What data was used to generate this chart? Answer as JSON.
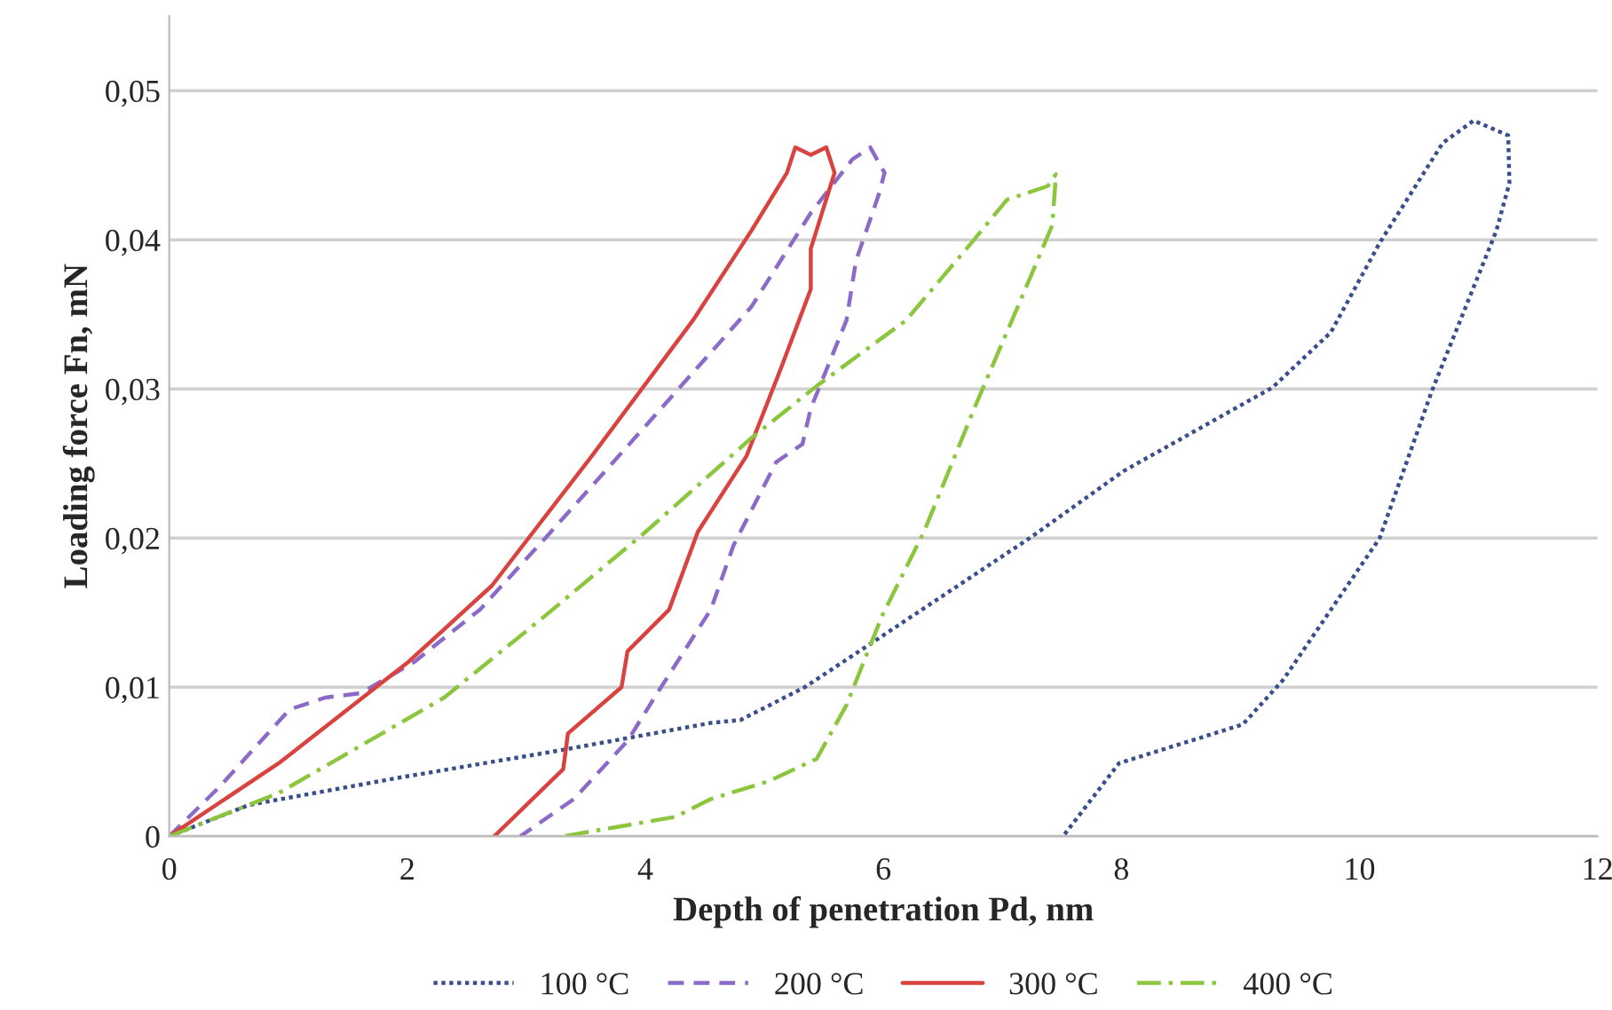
{
  "chart_data": {
    "type": "line",
    "xlabel": "Depth of penetration Pd, nm",
    "ylabel": "Loading force Fn, mN",
    "xlim": [
      0,
      12
    ],
    "xticks": [
      0,
      2,
      4,
      6,
      8,
      10,
      12
    ],
    "ylim": [
      0,
      0.055
    ],
    "yticks": [
      {
        "value": 0,
        "label": "0"
      },
      {
        "value": 0.01,
        "label": "0,01"
      },
      {
        "value": 0.02,
        "label": "0,02"
      },
      {
        "value": 0.03,
        "label": "0,03"
      },
      {
        "value": 0.04,
        "label": "0,04"
      },
      {
        "value": 0.05,
        "label": "0,05"
      }
    ],
    "grid": "y",
    "legend": "bottom",
    "series": [
      {
        "name": "100 °C",
        "color": "#3b4e8c",
        "line_style": "dotted",
        "x": [
          0,
          0.67,
          1.91,
          3.31,
          4.55,
          4.8,
          5.34,
          5.89,
          7.23,
          8.02,
          9.27,
          9.76,
          10.17,
          10.7,
          10.96,
          11.25,
          11.26,
          11.15,
          10.61,
          10.17,
          9.36,
          9.02,
          7.98,
          7.51
        ],
        "values": [
          0,
          0.0021,
          0.0039,
          0.0058,
          0.0076,
          0.0078,
          0.01,
          0.0129,
          0.02,
          0.0245,
          0.0301,
          0.0338,
          0.0398,
          0.0465,
          0.048,
          0.047,
          0.0438,
          0.0406,
          0.0299,
          0.02,
          0.0105,
          0.0075,
          0.0049,
          0
        ]
      },
      {
        "name": "200 °C",
        "color": "#8c6bc8",
        "line_style": "dashed",
        "x": [
          0,
          0.42,
          1.01,
          1.31,
          1.61,
          2.06,
          2.61,
          3.16,
          4.0,
          4.89,
          5.39,
          5.74,
          5.89,
          6.01,
          5.96,
          5.77,
          5.69,
          5.39,
          5.32,
          5.1,
          4.74,
          4.55,
          4.1,
          3.85,
          3.4,
          2.95
        ],
        "values": [
          0,
          0.0033,
          0.0085,
          0.0093,
          0.0096,
          0.0117,
          0.0152,
          0.02,
          0.0275,
          0.0355,
          0.0418,
          0.0454,
          0.0462,
          0.0445,
          0.043,
          0.0386,
          0.0346,
          0.0287,
          0.0263,
          0.0251,
          0.0195,
          0.0152,
          0.0096,
          0.0064,
          0.0025,
          0
        ]
      },
      {
        "name": "300 °C",
        "color": "#d9433f",
        "line_style": "solid",
        "x": [
          0,
          0.92,
          2.01,
          2.71,
          3.55,
          4.4,
          4.89,
          5.19,
          5.26,
          5.39,
          5.52,
          5.59,
          5.39,
          5.39,
          5.14,
          4.85,
          4.44,
          4.2,
          3.85,
          3.8,
          3.35,
          3.31,
          2.73
        ],
        "values": [
          0,
          0.0049,
          0.0117,
          0.0168,
          0.0255,
          0.0346,
          0.0406,
          0.0445,
          0.0462,
          0.0457,
          0.0462,
          0.0445,
          0.0394,
          0.0367,
          0.0314,
          0.0255,
          0.0204,
          0.0152,
          0.0124,
          0.01,
          0.0069,
          0.0045,
          0
        ]
      },
      {
        "name": "400 °C",
        "color": "#8cc63f",
        "line_style": "dashdot",
        "x": [
          0,
          0.92,
          2.31,
          3.16,
          4.0,
          4.89,
          5.44,
          6.19,
          6.74,
          7.04,
          7.38,
          7.45,
          7.42,
          7.23,
          6.78,
          6.34,
          5.99,
          5.69,
          5.44,
          5.04,
          4.55,
          4.25,
          3.31
        ],
        "values": [
          0,
          0.0029,
          0.0093,
          0.0148,
          0.0204,
          0.0267,
          0.0302,
          0.0346,
          0.0398,
          0.0427,
          0.0436,
          0.0444,
          0.041,
          0.0374,
          0.029,
          0.0204,
          0.0148,
          0.0088,
          0.0052,
          0.0037,
          0.0025,
          0.0013,
          0
        ]
      }
    ]
  }
}
